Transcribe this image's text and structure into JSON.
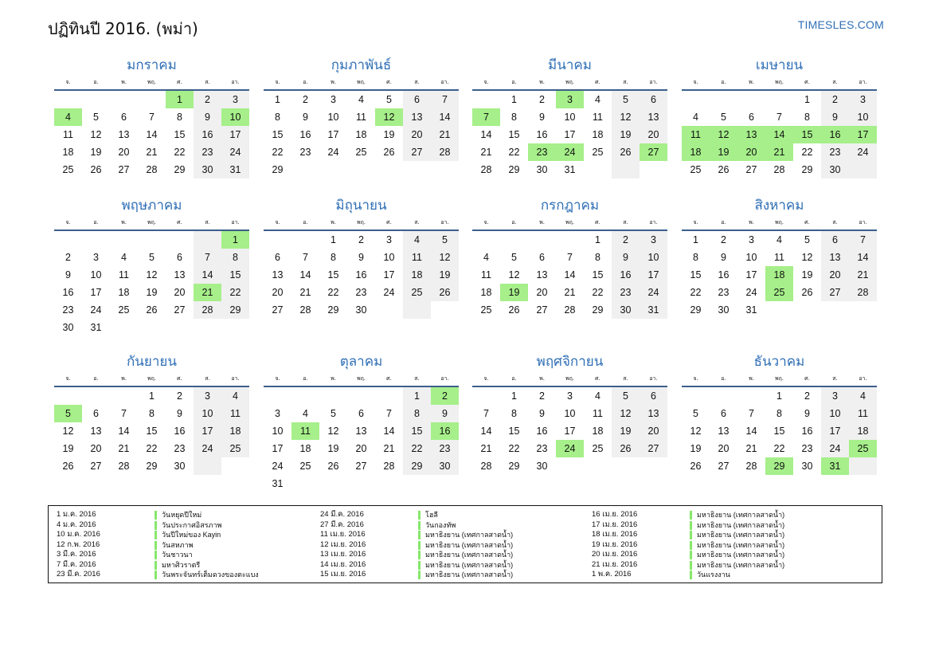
{
  "title": "ปฏิทินปี 2016. (พม่า)",
  "site": "TIMESLES.COM",
  "weekdays": [
    "จ.",
    "อ.",
    "พ.",
    "พฤ.",
    "ศ.",
    "ส.",
    "อา."
  ],
  "months": [
    {
      "name": "มกราคม",
      "offset": 4,
      "days": 31,
      "holidays": [
        1,
        4,
        10
      ]
    },
    {
      "name": "กุมภาพันธ์",
      "offset": 0,
      "days": 29,
      "holidays": [
        12
      ]
    },
    {
      "name": "มีนาคม",
      "offset": 1,
      "days": 31,
      "holidays": [
        3,
        7,
        23,
        24,
        27
      ]
    },
    {
      "name": "เมษายน",
      "offset": 4,
      "days": 30,
      "holidays": [
        11,
        12,
        13,
        14,
        15,
        16,
        17,
        18,
        19,
        20,
        21
      ]
    },
    {
      "name": "พฤษภาคม",
      "offset": 6,
      "days": 31,
      "holidays": [
        1,
        21
      ]
    },
    {
      "name": "มิถุนายน",
      "offset": 2,
      "days": 30,
      "holidays": []
    },
    {
      "name": "กรกฎาคม",
      "offset": 4,
      "days": 31,
      "holidays": [
        19
      ]
    },
    {
      "name": "สิงหาคม",
      "offset": 0,
      "days": 31,
      "holidays": [
        18,
        25
      ]
    },
    {
      "name": "กันยายน",
      "offset": 3,
      "days": 30,
      "holidays": [
        5
      ]
    },
    {
      "name": "ตุลาคม",
      "offset": 5,
      "days": 31,
      "holidays": [
        2,
        11,
        16
      ]
    },
    {
      "name": "พฤศจิกายน",
      "offset": 1,
      "days": 30,
      "holidays": [
        24
      ]
    },
    {
      "name": "ธันวาคม",
      "offset": 3,
      "days": 31,
      "holidays": [
        25,
        29,
        31
      ]
    }
  ],
  "legend": [
    [
      {
        "date": "1 ม.ค. 2016",
        "name": "วันหยุดปีใหม่"
      },
      {
        "date": "4 ม.ค. 2016",
        "name": "วันประกาศอิสรภาพ"
      },
      {
        "date": "10 ม.ค. 2016",
        "name": "วันปีใหม่ของ Kayin"
      },
      {
        "date": "12 ก.พ. 2016",
        "name": "วันสหภาพ"
      },
      {
        "date": "3 มี.ค. 2016",
        "name": "วันชาวนา"
      },
      {
        "date": "7 มี.ค. 2016",
        "name": "มหาศิวราตรี"
      },
      {
        "date": "23 มี.ค. 2016",
        "name": "วันพระจันทร์เต็มดวงของตะแบง"
      }
    ],
    [
      {
        "date": "24 มี.ค. 2016",
        "name": "โฮลี"
      },
      {
        "date": "27 มี.ค. 2016",
        "name": "วันกองทัพ"
      },
      {
        "date": "11 เม.ย. 2016",
        "name": "มหาธิงยาน (เทศกาลสาดน้ำ)"
      },
      {
        "date": "12 เม.ย. 2016",
        "name": "มหาธิงยาน (เทศกาลสาดน้ำ)"
      },
      {
        "date": "13 เม.ย. 2016",
        "name": "มหาธิงยาน (เทศกาลสาดน้ำ)"
      },
      {
        "date": "14 เม.ย. 2016",
        "name": "มหาธิงยาน (เทศกาลสาดน้ำ)"
      },
      {
        "date": "15 เม.ย. 2016",
        "name": "มหาธิงยาน (เทศกาลสาดน้ำ)"
      }
    ],
    [
      {
        "date": "16 เม.ย. 2016",
        "name": "มหาธิงยาน (เทศกาลสาดน้ำ)"
      },
      {
        "date": "17 เม.ย. 2016",
        "name": "มหาธิงยาน (เทศกาลสาดน้ำ)"
      },
      {
        "date": "18 เม.ย. 2016",
        "name": "มหาธิงยาน (เทศกาลสาดน้ำ)"
      },
      {
        "date": "19 เม.ย. 2016",
        "name": "มหาธิงยาน (เทศกาลสาดน้ำ)"
      },
      {
        "date": "20 เม.ย. 2016",
        "name": "มหาธิงยาน (เทศกาลสาดน้ำ)"
      },
      {
        "date": "21 เม.ย. 2016",
        "name": "มหาธิงยาน (เทศกาลสาดน้ำ)"
      },
      {
        "date": "1 พ.ค. 2016",
        "name": "วันแรงงาน"
      }
    ]
  ]
}
